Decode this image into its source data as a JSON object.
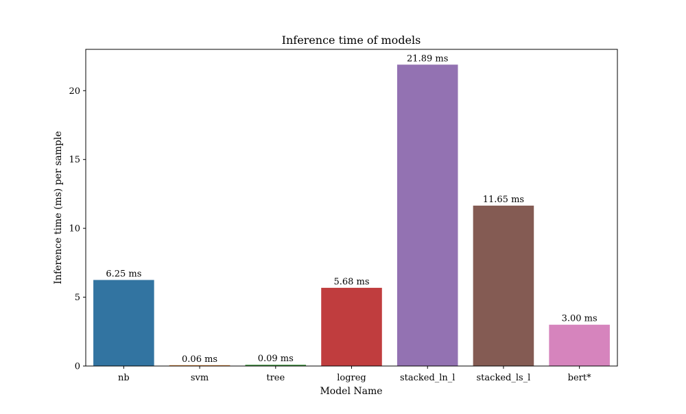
{
  "chart_data": {
    "type": "bar",
    "title": "Inference time of models",
    "xlabel": "Model Name",
    "ylabel": "Inference time (ms) per sample",
    "categories": [
      "nb",
      "svm",
      "tree",
      "logreg",
      "stacked_ln_l",
      "stacked_ls_l",
      "bert*"
    ],
    "values": [
      6.25,
      0.06,
      0.09,
      5.68,
      21.89,
      11.65,
      3.0
    ],
    "data_labels": [
      "6.25 ms",
      "0.06 ms",
      "0.09 ms",
      "5.68 ms",
      "21.89 ms",
      "11.65 ms",
      "3.00 ms"
    ],
    "colors": [
      "#3274a1",
      "#e1812c",
      "#3a923a",
      "#c03d3e",
      "#9372b2",
      "#845b53",
      "#d684bd"
    ],
    "ylim": [
      0,
      23
    ],
    "yticks": [
      0,
      5,
      10,
      15,
      20
    ],
    "grid": false,
    "legend": "none"
  }
}
